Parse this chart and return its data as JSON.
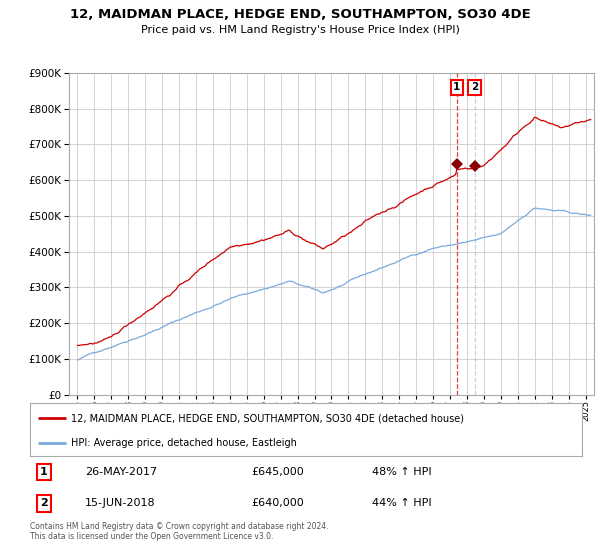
{
  "title": "12, MAIDMAN PLACE, HEDGE END, SOUTHAMPTON, SO30 4DE",
  "subtitle": "Price paid vs. HM Land Registry's House Price Index (HPI)",
  "red_label": "12, MAIDMAN PLACE, HEDGE END, SOUTHAMPTON, SO30 4DE (detached house)",
  "blue_label": "HPI: Average price, detached house, Eastleigh",
  "annotation1_date": "26-MAY-2017",
  "annotation1_price": "£645,000",
  "annotation1_pct": "48% ↑ HPI",
  "annotation2_date": "15-JUN-2018",
  "annotation2_price": "£640,000",
  "annotation2_pct": "44% ↑ HPI",
  "marker1_x": 2017.4,
  "marker1_y": 645000,
  "marker2_x": 2018.45,
  "marker2_y": 640000,
  "vline1_x": 2017.4,
  "vline2_x": 2018.45,
  "ylim": [
    0,
    900000
  ],
  "xlim": [
    1994.5,
    2025.5
  ],
  "footer": "Contains HM Land Registry data © Crown copyright and database right 2024.\nThis data is licensed under the Open Government Licence v3.0.",
  "background_color": "#ffffff",
  "grid_color": "#cccccc",
  "red_color": "#cc0000",
  "blue_color": "#7aaadd"
}
